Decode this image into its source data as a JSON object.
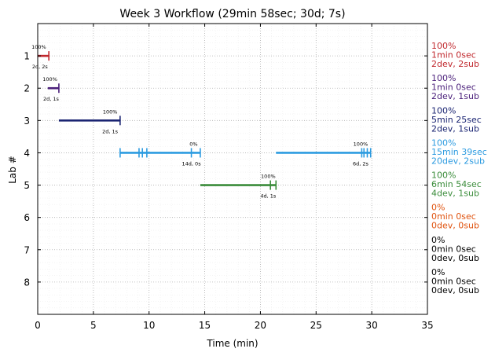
{
  "chart_data": {
    "type": "timeline",
    "title": "Week 3 Workflow (29min 58sec; 30d; 7s)",
    "xlabel": "Time (min)",
    "ylabel": "Lab #",
    "xlim": [
      0,
      35
    ],
    "ylim": [
      0,
      9
    ],
    "y_inverted": true,
    "xticks": [
      0,
      5,
      10,
      15,
      20,
      25,
      30,
      35
    ],
    "yticks": [
      1,
      2,
      3,
      4,
      5,
      6,
      7,
      8
    ],
    "grid": true,
    "labs": [
      {
        "lab": 1,
        "color": "#c0282d",
        "segments": [
          {
            "start": 0.0,
            "end": 1.0
          }
        ],
        "ticks": [
          1.0
        ],
        "above": [
          {
            "x": 0.1,
            "text": "100%"
          }
        ],
        "below": [
          {
            "x": 0.2,
            "text": "2d, 2s"
          }
        ],
        "side": [
          "100%",
          "1min 0sec",
          "2dev, 2sub"
        ]
      },
      {
        "lab": 2,
        "color": "#4a1f7a",
        "segments": [
          {
            "start": 0.9,
            "end": 1.9
          }
        ],
        "ticks": [
          1.9
        ],
        "above": [
          {
            "x": 1.1,
            "text": "100%"
          }
        ],
        "below": [
          {
            "x": 1.2,
            "text": "2d, 1s"
          }
        ],
        "side": [
          "100%",
          "1min 0sec",
          "2dev, 1sub"
        ]
      },
      {
        "lab": 3,
        "color": "#1a2472",
        "segments": [
          {
            "start": 1.9,
            "end": 7.4
          }
        ],
        "ticks": [
          7.4
        ],
        "above": [
          {
            "x": 6.5,
            "text": "100%"
          }
        ],
        "below": [
          {
            "x": 6.5,
            "text": "2d, 1s"
          }
        ],
        "side": [
          "100%",
          "5min 25sec",
          "2dev, 1sub"
        ]
      },
      {
        "lab": 4,
        "color": "#2c9be0",
        "segments": [
          {
            "start": 7.4,
            "end": 14.6
          },
          {
            "start": 21.4,
            "end": 29.9
          }
        ],
        "ticks": [
          7.4,
          9.1,
          9.4,
          9.8,
          13.8,
          14.6,
          29.1,
          29.3,
          29.6,
          29.9
        ],
        "above": [
          {
            "x": 14.0,
            "text": "0%"
          },
          {
            "x": 29.0,
            "text": "100%"
          }
        ],
        "below": [
          {
            "x": 13.8,
            "text": "14d, 0s"
          },
          {
            "x": 29.0,
            "text": "6d, 2s"
          }
        ],
        "side": [
          "100%",
          "15min 39sec",
          "20dev, 2sub"
        ]
      },
      {
        "lab": 5,
        "color": "#3a8c3a",
        "segments": [
          {
            "start": 14.6,
            "end": 21.4
          }
        ],
        "ticks": [
          20.9,
          21.4
        ],
        "above": [
          {
            "x": 20.7,
            "text": "100%"
          }
        ],
        "below": [
          {
            "x": 20.7,
            "text": "4d, 1s"
          }
        ],
        "side": [
          "100%",
          "6min 54sec",
          "4dev, 1sub"
        ]
      },
      {
        "lab": 6,
        "color": "#e0530f",
        "segments": [],
        "ticks": [],
        "above": [],
        "below": [],
        "side": [
          "0%",
          "0min 0sec",
          "0dev, 0sub"
        ]
      },
      {
        "lab": 7,
        "color": "#000000",
        "segments": [],
        "ticks": [],
        "above": [],
        "below": [],
        "side": [
          "0%",
          "0min 0sec",
          "0dev, 0sub"
        ]
      },
      {
        "lab": 8,
        "color": "#000000",
        "segments": [],
        "ticks": [],
        "above": [],
        "below": [],
        "side": [
          "0%",
          "0min 0sec",
          "0dev, 0sub"
        ]
      }
    ]
  }
}
